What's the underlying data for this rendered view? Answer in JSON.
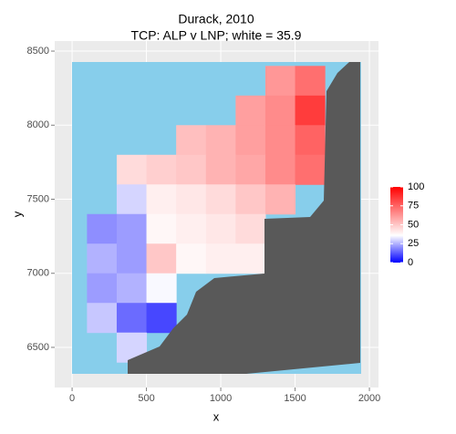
{
  "chart_data": {
    "type": "raster",
    "title": "Durack, 2010",
    "subtitle": "TCP: ALP v LNP; white = 35.9",
    "xlabel": "x",
    "ylabel": "y",
    "xlim": [
      -117,
      2061
    ],
    "ylim": [
      6229,
      8568
    ],
    "xticks": [
      0,
      500,
      1000,
      1500,
      2000
    ],
    "yticks": [
      6500,
      7000,
      7500,
      8000,
      8500
    ],
    "grid": true,
    "tile_size": 200,
    "x": [
      200,
      400,
      600,
      800,
      1000,
      1200,
      1400,
      1600
    ],
    "y": [
      8300,
      8100,
      7900,
      7700,
      7500,
      7300,
      7100,
      6900,
      6700,
      6500
    ],
    "values": [
      [
        null,
        null,
        null,
        null,
        null,
        null,
        62,
        72
      ],
      [
        null,
        null,
        null,
        null,
        null,
        60,
        65,
        85
      ],
      [
        null,
        null,
        null,
        52,
        55,
        60,
        65,
        75
      ],
      [
        null,
        45,
        48,
        50,
        55,
        58,
        65,
        72
      ],
      [
        null,
        30,
        40,
        42,
        45,
        50,
        55,
        null
      ],
      [
        20,
        22,
        38,
        40,
        42,
        45,
        null,
        null
      ],
      [
        25,
        22,
        50,
        38,
        40,
        40,
        null,
        null
      ],
      [
        22,
        25,
        35,
        null,
        null,
        null,
        null,
        null
      ],
      [
        28,
        15,
        10,
        null,
        null,
        null,
        null,
        null
      ],
      [
        null,
        30,
        null,
        null,
        null,
        null,
        null,
        null
      ]
    ],
    "color_low": "#0000ff",
    "color_mid": "#ffffff",
    "color_high": "#ff0000",
    "midpoint": 35.9,
    "color_lim": [
      0,
      100
    ],
    "color_ticks": [
      0,
      25,
      50,
      75,
      100
    ]
  }
}
